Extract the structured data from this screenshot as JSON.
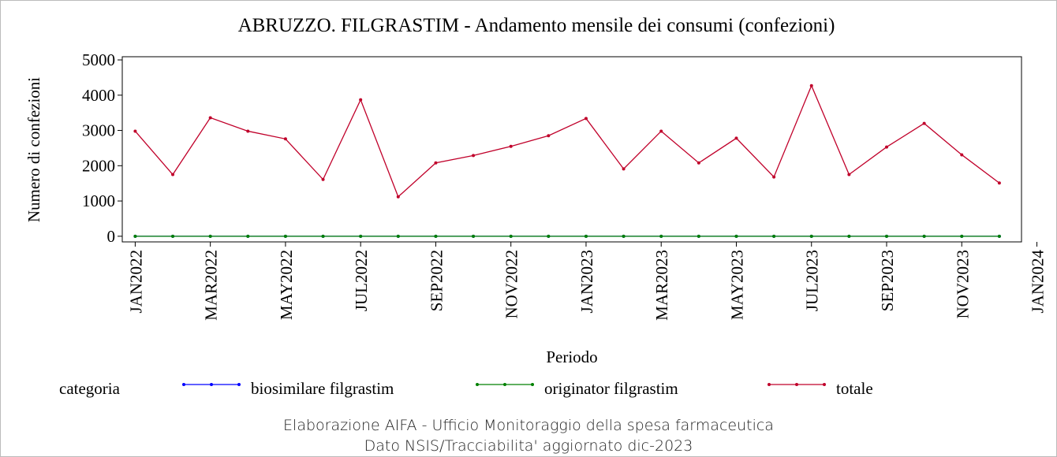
{
  "chart_data": {
    "type": "line",
    "title": "ABRUZZO. FILGRASTIM - Andamento mensile dei consumi (confezioni)",
    "xlabel": "Periodo",
    "ylabel": "Numero di confezioni",
    "x": [
      "2022-01",
      "2022-02",
      "2022-03",
      "2022-04",
      "2022-05",
      "2022-06",
      "2022-07",
      "2022-08",
      "2022-09",
      "2022-10",
      "2022-11",
      "2022-12",
      "2023-01",
      "2023-02",
      "2023-03",
      "2023-04",
      "2023-05",
      "2023-06",
      "2023-07",
      "2023-08",
      "2023-09",
      "2023-10",
      "2023-11",
      "2023-12"
    ],
    "series": [
      {
        "name": "biosimilare filgrastim",
        "color": "#0000ff",
        "values": [
          0,
          0,
          0,
          0,
          0,
          0,
          0,
          0,
          0,
          0,
          0,
          0,
          0,
          0,
          0,
          0,
          0,
          0,
          0,
          0,
          0,
          0,
          0,
          0
        ]
      },
      {
        "name": "originator filgrastim",
        "color": "#008000",
        "values": [
          0,
          0,
          0,
          0,
          0,
          0,
          0,
          0,
          0,
          0,
          0,
          0,
          0,
          0,
          0,
          0,
          0,
          0,
          0,
          0,
          0,
          0,
          0,
          0
        ]
      },
      {
        "name": "totale",
        "color": "#c0002a",
        "values": [
          2980,
          1750,
          3360,
          2980,
          2760,
          1610,
          3870,
          1120,
          2080,
          2290,
          2550,
          2850,
          3340,
          1910,
          2980,
          2080,
          2780,
          1680,
          4270,
          1750,
          2530,
          3200,
          2310,
          1510
        ]
      }
    ],
    "legend_title": "categoria",
    "xlim": [
      "2021-12-21",
      "2023-12-19"
    ],
    "xticks": [
      {
        "value": "2022-01",
        "label": "JAN2022"
      },
      {
        "value": "2022-03",
        "label": "MAR2022"
      },
      {
        "value": "2022-05",
        "label": "MAY2022"
      },
      {
        "value": "2022-07",
        "label": "JUL2022"
      },
      {
        "value": "2022-09",
        "label": "SEP2022"
      },
      {
        "value": "2022-11",
        "label": "NOV2022"
      },
      {
        "value": "2023-01",
        "label": "JAN2023"
      },
      {
        "value": "2023-03",
        "label": "MAR2023"
      },
      {
        "value": "2023-05",
        "label": "MAY2023"
      },
      {
        "value": "2023-07",
        "label": "JUL2023"
      },
      {
        "value": "2023-09",
        "label": "SEP2023"
      },
      {
        "value": "2023-11",
        "label": "NOV2023"
      },
      {
        "value": "2024-01",
        "label": "JAN2024"
      }
    ],
    "ylim": [
      -160,
      5090
    ],
    "yticks": [
      0,
      1000,
      2000,
      3000,
      4000,
      5000
    ],
    "footnotes": [
      "Elaborazione AIFA - Ufficio Monitoraggio della spesa farmaceutica",
      "Dato NSIS/Tracciabilita' aggiornato dic-2023"
    ]
  }
}
